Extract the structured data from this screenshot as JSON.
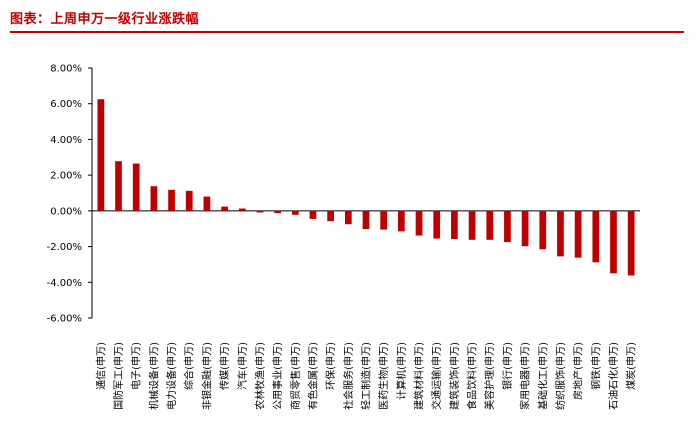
{
  "header": {
    "title": "图表：上周申万一级行业涨跌幅"
  },
  "chart_data": {
    "type": "bar",
    "title": "图表：上周申万一级行业涨跌幅",
    "xlabel": "",
    "ylabel": "",
    "ylim": [
      -6,
      8
    ],
    "yticks": [
      "8.00%",
      "6.00%",
      "4.00%",
      "2.00%",
      "0.00%",
      "-2.00%",
      "-4.00%",
      "-6.00%"
    ],
    "grid": false,
    "bar_color": "#c00000",
    "categories": [
      "通信(申万)",
      "国防军工(申万)",
      "电子(申万)",
      "机械设备(申万)",
      "电力设备(申万)",
      "综合(申万)",
      "非银金融(申万)",
      "传媒(申万)",
      "汽车(申万)",
      "农林牧渔(申万)",
      "公用事业(申万)",
      "商贸零售(申万)",
      "有色金属(申万)",
      "环保(申万)",
      "社会服务(申万)",
      "轻工制造(申万)",
      "医药生物(申万)",
      "计算机(申万)",
      "建筑材料(申万)",
      "交通运输(申万)",
      "建筑装饰(申万)",
      "食品饮料(申万)",
      "美容护理(申万)",
      "银行(申万)",
      "家用电器(申万)",
      "基础化工(申万)",
      "纺织服饰(申万)",
      "房地产(申万)",
      "钢铁(申万)",
      "石油石化(申万)",
      "煤炭(申万)"
    ],
    "values": [
      6.25,
      2.78,
      2.65,
      1.38,
      1.18,
      1.12,
      0.8,
      0.24,
      0.13,
      -0.09,
      -0.13,
      -0.22,
      -0.45,
      -0.58,
      -0.75,
      -1.02,
      -1.05,
      -1.15,
      -1.38,
      -1.55,
      -1.58,
      -1.62,
      -1.62,
      -1.75,
      -1.98,
      -2.15,
      -2.55,
      -2.62,
      -2.88,
      -3.5,
      -3.62
    ]
  }
}
